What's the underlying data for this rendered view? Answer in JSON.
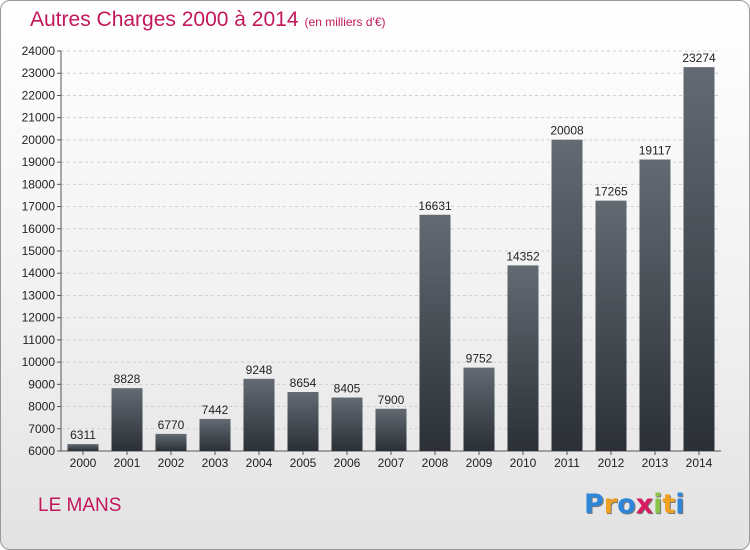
{
  "header": {
    "title": "Autres Charges 2000 à 2014",
    "unit": "(en milliers d'€)"
  },
  "footer": {
    "city": "LE MANS",
    "logo": {
      "text": "Proxiti",
      "letters": [
        {
          "char": "P",
          "color": "#2e86d9"
        },
        {
          "char": "r",
          "color": "#f0a020"
        },
        {
          "char": "o",
          "color": "#2e86d9"
        },
        {
          "char": "x",
          "color": "#d81b60"
        },
        {
          "char": "i",
          "color": "#8bc34a"
        },
        {
          "char": "t",
          "color": "#f0a020"
        },
        {
          "char": "i",
          "color": "#2e86d9"
        }
      ]
    }
  },
  "colors": {
    "title": "#c2185b",
    "bar_top": "#636a72",
    "bar_bottom": "#2b3036",
    "grid": "#cfcfcf"
  },
  "chart_data": {
    "type": "bar",
    "categories": [
      "2000",
      "2001",
      "2002",
      "2003",
      "2004",
      "2005",
      "2006",
      "2007",
      "2008",
      "2009",
      "2010",
      "2011",
      "2012",
      "2013",
      "2014"
    ],
    "values": [
      6311,
      8828,
      6770,
      7442,
      9248,
      8654,
      8405,
      7900,
      16631,
      9752,
      14352,
      20008,
      17265,
      19117,
      23274
    ],
    "ylim": [
      6000,
      24000
    ],
    "yticks": [
      6000,
      7000,
      8000,
      9000,
      10000,
      11000,
      12000,
      13000,
      14000,
      15000,
      16000,
      17000,
      18000,
      19000,
      20000,
      21000,
      22000,
      23000,
      24000
    ],
    "grid": true,
    "data_labels": true
  }
}
